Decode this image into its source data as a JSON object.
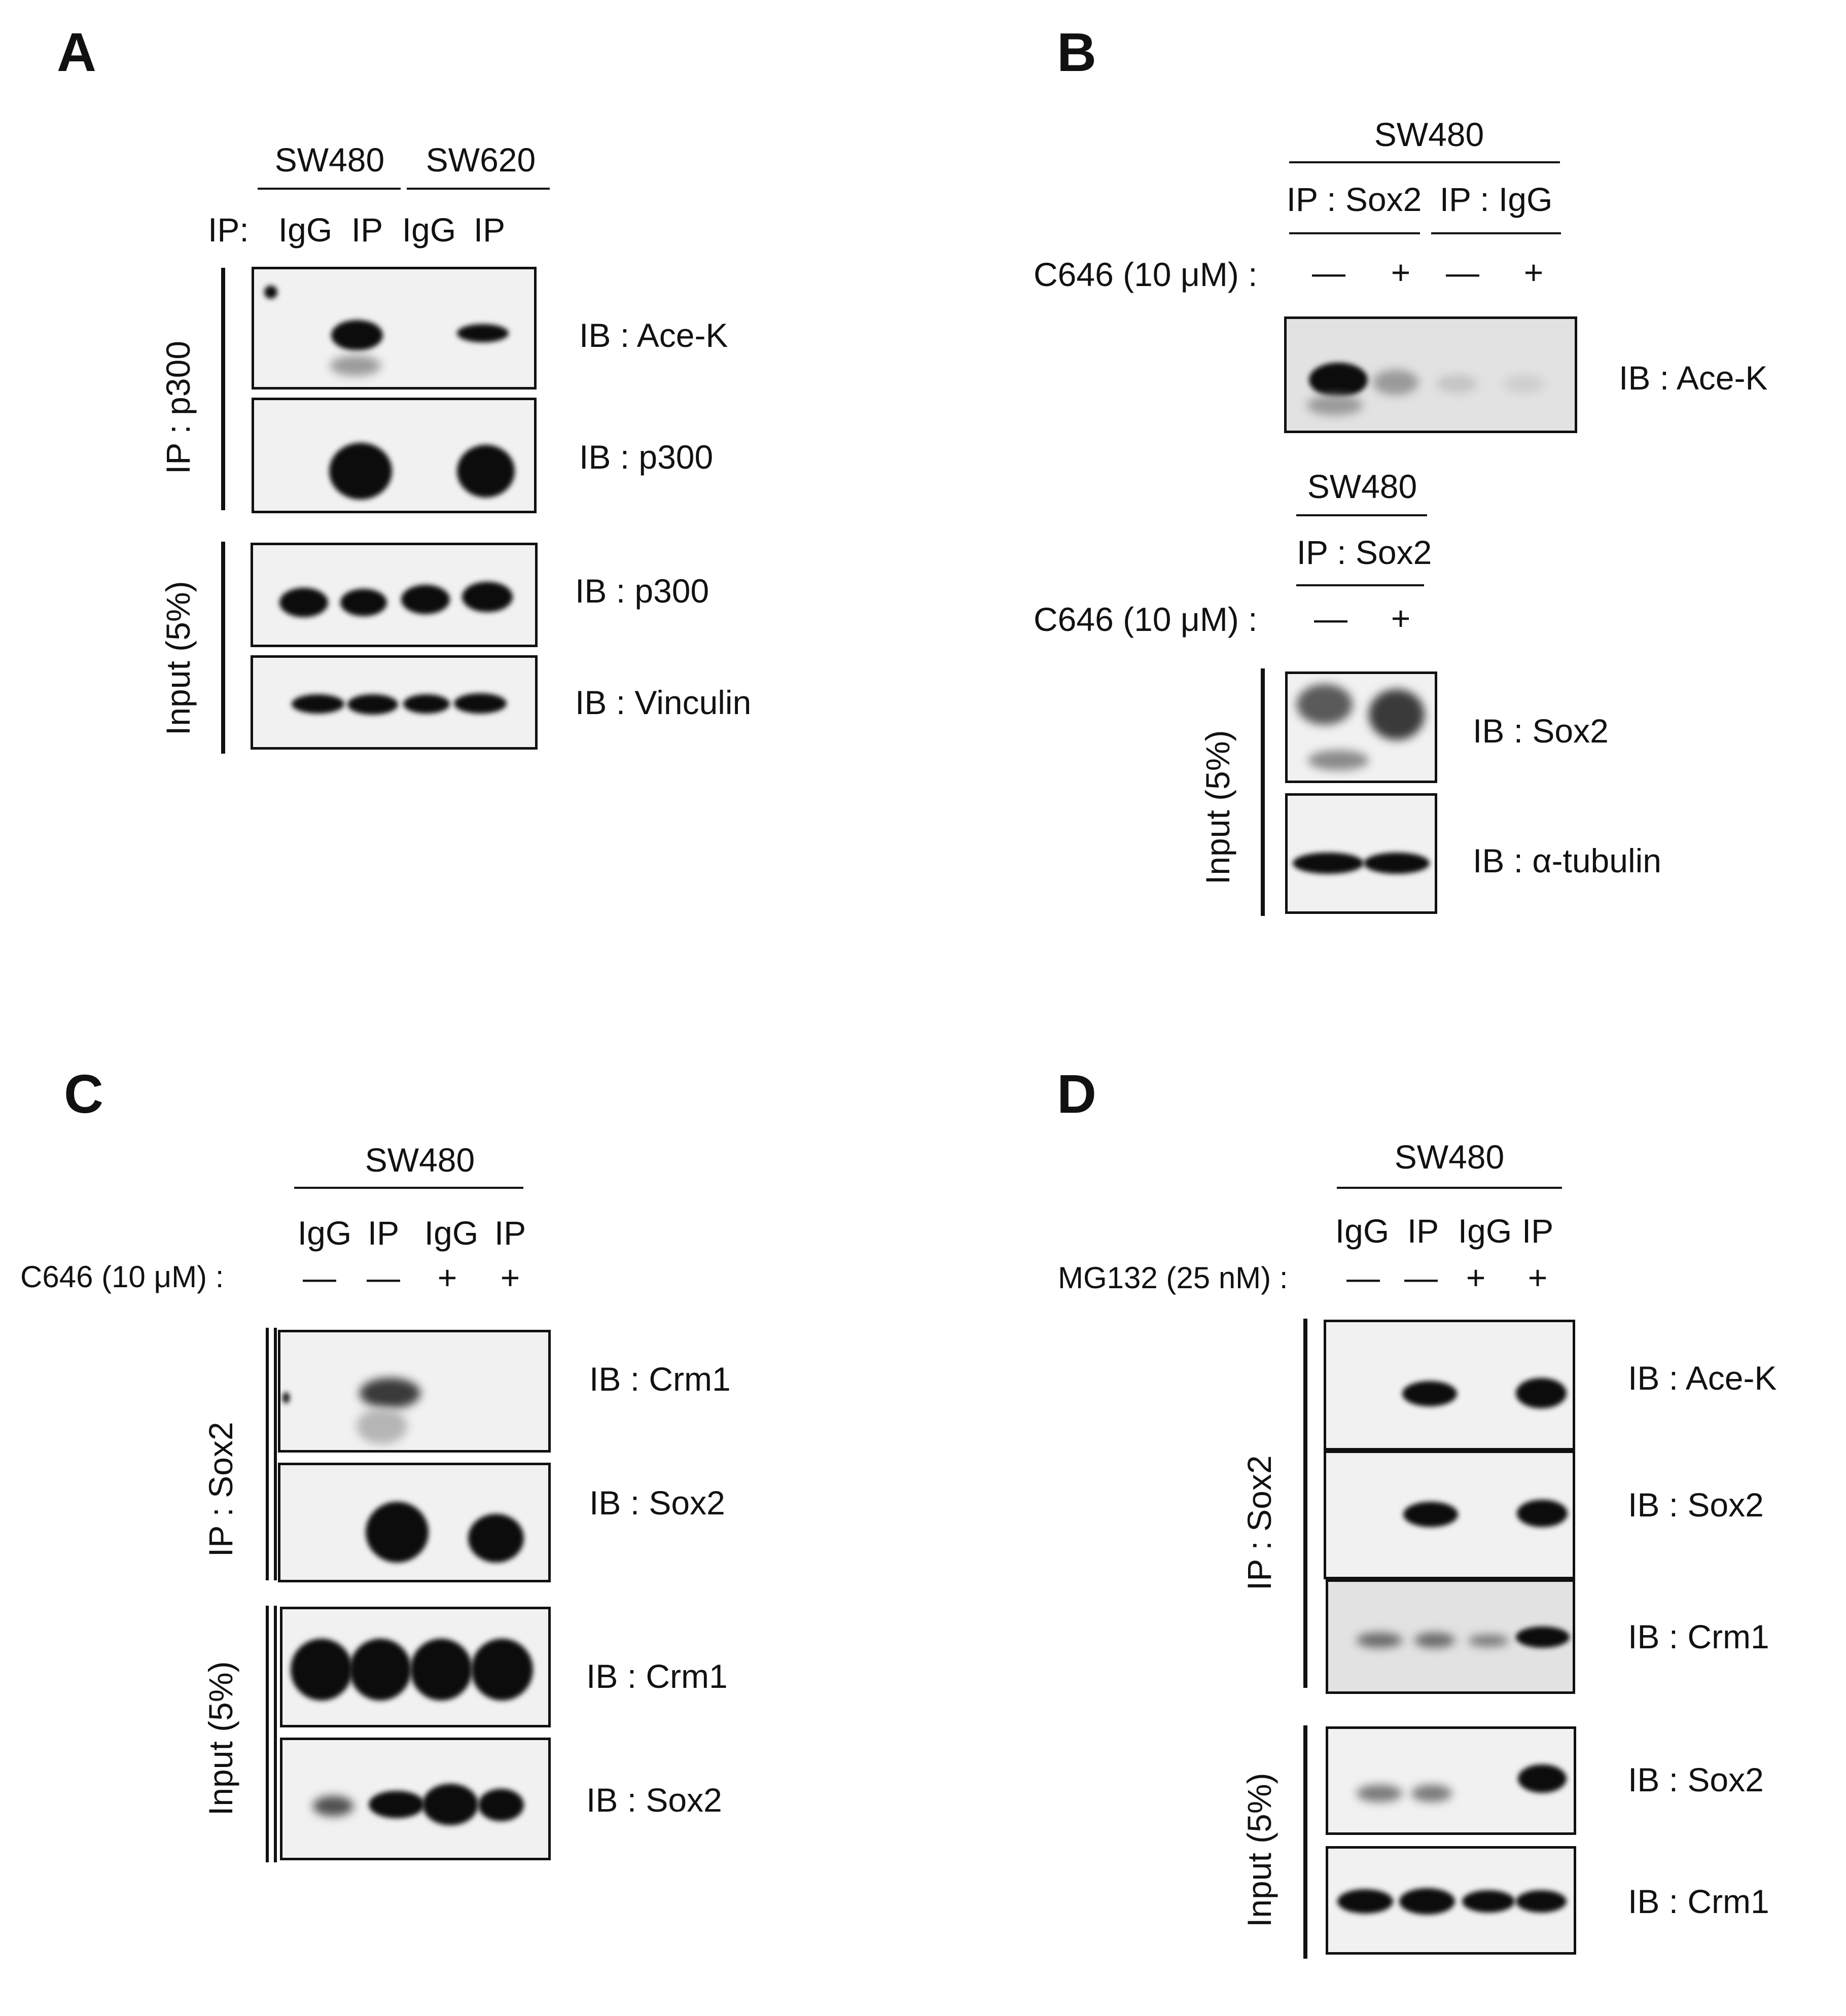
{
  "panels": {
    "A": {
      "letter": "A",
      "cell_line_1": "SW480",
      "cell_line_2": "SW620",
      "ip_prefix": "IP:",
      "lanes": [
        "IgG",
        "IP",
        "IgG",
        "IP"
      ],
      "group_ip": "IP : p300",
      "group_input": "Input (5%)",
      "blots": [
        "IB : Ace-K",
        "IB : p300",
        "IB : p300",
        "IB : Vinculin"
      ]
    },
    "B": {
      "letter": "B",
      "cell_line_top": "SW480",
      "ip_sox2": "IP : Sox2",
      "ip_igg": "IP : IgG",
      "treatment": "C646 (10 μM) :",
      "signs_top": [
        "—",
        "+",
        "—",
        "+"
      ],
      "blot_top": "IB : Ace-K",
      "cell_line_bottom": "SW480",
      "ip_sox2_bottom": "IP : Sox2",
      "treatment_bottom": "C646 (10 μM) :",
      "signs_bottom": [
        "—",
        "+"
      ],
      "group_input": "Input (5%)",
      "blots_bottom": [
        "IB : Sox2",
        "IB : α-tubulin"
      ]
    },
    "C": {
      "letter": "C",
      "cell_line": "SW480",
      "lanes": [
        "IgG",
        "IP",
        "IgG",
        "IP"
      ],
      "treatment": "C646 (10 μM) :",
      "signs": [
        "—",
        "—",
        "+",
        "+"
      ],
      "group_ip": "IP : Sox2",
      "group_input": "Input (5%)",
      "blots": [
        "IB : Crm1",
        "IB : Sox2",
        "IB : Crm1",
        "IB : Sox2"
      ]
    },
    "D": {
      "letter": "D",
      "cell_line": "SW480",
      "lanes": [
        "IgG",
        "IP",
        "IgG",
        "IP"
      ],
      "treatment": "MG132 (25 nM) :",
      "signs": [
        "—",
        "—",
        "+",
        "+"
      ],
      "group_ip": "IP : Sox2",
      "group_input": "Input (5%)",
      "blots": [
        "IB : Ace-K",
        "IB : Sox2",
        "IB : Crm1",
        "IB : Sox2",
        "IB : Crm1"
      ]
    }
  }
}
